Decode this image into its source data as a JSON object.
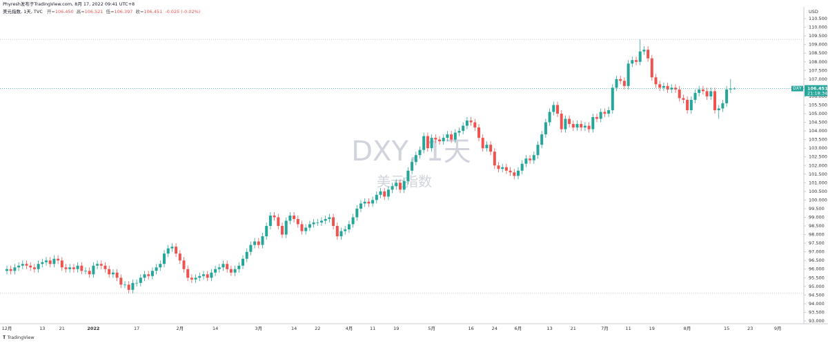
{
  "header": {
    "publisher": "Phyresh发布于TradingView.com, 8月 17, 2022 09:41 UTC+8",
    "symbol": "美元指数, 1天, TVC",
    "ohlc": [
      {
        "label": "开=",
        "value": "106.450"
      },
      {
        "label": "高=",
        "value": "106.521"
      },
      {
        "label": "低=",
        "value": "106.397"
      },
      {
        "label": "收=",
        "value": "106.451"
      }
    ],
    "change": "-0.025 (-0.02%)"
  },
  "watermark": {
    "ticker": "DXY, 1天",
    "name": "美元指数"
  },
  "price_tag": {
    "symbol": "DXY",
    "countdown": "21:18:34"
  },
  "footer": "TradingView",
  "chart_data": {
    "type": "candlestick",
    "currency": "USD",
    "up_color": "#26a69a",
    "down_color": "#ef5350",
    "ylim": [
      92.84,
      111.18
    ],
    "yticks": [
      {
        "value": 93,
        "label": "93.000"
      },
      {
        "value": 93.5,
        "label": "93.500"
      },
      {
        "value": 94,
        "label": "94.000"
      },
      {
        "value": 94.5,
        "label": "94.500"
      },
      {
        "value": 95,
        "label": "95.000"
      },
      {
        "value": 95.5,
        "label": "95.500"
      },
      {
        "value": 96,
        "label": "96.000"
      },
      {
        "value": 96.5,
        "label": "96.500"
      },
      {
        "value": 97,
        "label": "97.000"
      },
      {
        "value": 97.5,
        "label": "97.500"
      },
      {
        "value": 98,
        "label": "98.000"
      },
      {
        "value": 98.5,
        "label": "98.500"
      },
      {
        "value": 99,
        "label": "99.000"
      },
      {
        "value": 99.5,
        "label": "99.500"
      },
      {
        "value": 100,
        "label": "100.000"
      },
      {
        "value": 100.5,
        "label": "100.500"
      },
      {
        "value": 101,
        "label": "101.000"
      },
      {
        "value": 101.5,
        "label": "101.500"
      },
      {
        "value": 102,
        "label": "102.000"
      },
      {
        "value": 102.5,
        "label": "102.500"
      },
      {
        "value": 103,
        "label": "103.000"
      },
      {
        "value": 103.5,
        "label": "103.500"
      },
      {
        "value": 104,
        "label": "104.000"
      },
      {
        "value": 104.5,
        "label": "104.500"
      },
      {
        "value": 105,
        "label": "105.000"
      },
      {
        "value": 105.5,
        "label": "105.500"
      },
      {
        "value": 106,
        "label": "106.000"
      },
      {
        "value": 106.5,
        "label": "106.500"
      },
      {
        "value": 107,
        "label": "107.000"
      },
      {
        "value": 107.5,
        "label": "107.500"
      },
      {
        "value": 108,
        "label": "108.000"
      },
      {
        "value": 108.5,
        "label": "108.500"
      },
      {
        "value": 109,
        "label": "109.000"
      },
      {
        "value": 109.5,
        "label": "109.500"
      },
      {
        "value": 110,
        "label": "110.000"
      },
      {
        "value": 110.5,
        "label": "110.500"
      }
    ],
    "grid": false,
    "extreme_lines": [
      109.3,
      94.6
    ],
    "categories": [
      "12月",
      null,
      null,
      null,
      null,
      null,
      null,
      null,
      null,
      "13",
      null,
      null,
      null,
      null,
      "21",
      null,
      null,
      null,
      null,
      null,
      null,
      null,
      "2022",
      null,
      null,
      null,
      null,
      null,
      null,
      null,
      null,
      null,
      null,
      "17",
      null,
      null,
      null,
      null,
      null,
      null,
      null,
      null,
      null,
      null,
      "2月",
      null,
      null,
      null,
      null,
      null,
      null,
      null,
      null,
      "14",
      null,
      null,
      null,
      null,
      null,
      null,
      null,
      null,
      null,
      null,
      "3月",
      null,
      null,
      null,
      null,
      null,
      null,
      null,
      null,
      "14",
      null,
      null,
      null,
      null,
      null,
      "22",
      null,
      null,
      null,
      null,
      null,
      null,
      null,
      "4月",
      null,
      null,
      null,
      null,
      null,
      "11",
      null,
      null,
      null,
      null,
      null,
      "19",
      null,
      null,
      null,
      null,
      null,
      null,
      null,
      null,
      "5月",
      null,
      null,
      null,
      null,
      null,
      null,
      null,
      null,
      null,
      "16",
      null,
      null,
      null,
      null,
      null,
      "24",
      null,
      null,
      null,
      null,
      null,
      "6月",
      null,
      null,
      null,
      null,
      null,
      null,
      null,
      "13",
      null,
      null,
      null,
      null,
      null,
      "21",
      null,
      null,
      null,
      null,
      null,
      null,
      null,
      "7月",
      null,
      null,
      null,
      null,
      null,
      "11",
      null,
      null,
      null,
      null,
      null,
      "19",
      null,
      null,
      null,
      null,
      null,
      null,
      null,
      null,
      "8月",
      null,
      null,
      null,
      null,
      null,
      null,
      null,
      null,
      null,
      "15",
      null,
      null,
      null,
      null,
      null,
      "23",
      null,
      null,
      null,
      null,
      null,
      null,
      "9月",
      null,
      null,
      null
    ],
    "open": [
      95.9,
      96.0,
      95.9,
      96.1,
      96.2,
      96.3,
      96.2,
      96.1,
      96.0,
      96.3,
      96.4,
      96.5,
      96.3,
      96.6,
      96.5,
      96.1,
      96.0,
      96.1,
      96.0,
      96.2,
      95.9,
      95.9,
      95.7,
      96.2,
      96.3,
      96.2,
      96.0,
      95.7,
      95.8,
      95.5,
      95.1,
      95.1,
      94.8,
      95.2,
      95.2,
      95.5,
      95.7,
      95.6,
      95.9,
      96.1,
      96.3,
      96.9,
      97.2,
      97.3,
      96.9,
      96.5,
      96.0,
      95.5,
      95.4,
      95.5,
      95.6,
      95.7,
      95.5,
      95.8,
      96.0,
      96.1,
      96.3,
      96.0,
      95.8,
      96.0,
      96.2,
      96.6,
      97.0,
      97.4,
      97.6,
      97.4,
      97.9,
      98.5,
      99.1,
      99.0,
      98.5,
      98.0,
      98.8,
      99.1,
      98.9,
      98.6,
      98.2,
      98.4,
      98.6,
      98.7,
      98.7,
      98.8,
      98.9,
      99.0,
      98.5,
      97.9,
      98.2,
      98.3,
      98.6,
      99.0,
      99.5,
      99.8,
      99.9,
      99.8,
      100.0,
      100.3,
      100.5,
      100.2,
      100.6,
      100.8,
      101.0,
      100.6,
      101.1,
      101.7,
      102.2,
      102.6,
      102.9,
      103.7,
      103.0,
      103.6,
      103.5,
      103.4,
      103.6,
      103.8,
      103.5,
      103.9,
      104.0,
      104.3,
      104.6,
      104.5,
      104.2,
      103.6,
      103.0,
      103.2,
      102.8,
      102.0,
      101.8,
      101.9,
      101.7,
      101.6,
      101.4,
      101.7,
      102.1,
      102.4,
      102.3,
      102.6,
      103.2,
      103.8,
      104.5,
      105.1,
      105.5,
      105.0,
      104.1,
      104.7,
      104.4,
      104.2,
      104.4,
      104.2,
      104.3,
      104.1,
      104.8,
      104.7,
      105.1,
      105.0,
      105.2,
      106.5,
      107.0,
      106.9,
      106.6,
      107.9,
      108.1,
      108.0,
      108.6,
      108.7,
      108.2,
      107.1,
      106.7,
      106.5,
      106.6,
      106.4,
      106.5,
      106.4,
      105.9,
      105.8,
      105.2,
      105.8,
      106.2,
      106.4,
      106.3,
      106.0,
      106.3,
      105.2,
      105.3,
      105.6,
      106.4,
      106.45,
      null,
      null,
      null,
      null,
      null,
      null,
      null,
      null,
      null,
      null,
      null,
      null,
      null,
      null
    ],
    "high": [
      96.2,
      96.2,
      96.3,
      96.4,
      96.5,
      96.5,
      96.4,
      96.3,
      96.5,
      96.6,
      96.7,
      96.7,
      96.8,
      96.8,
      96.7,
      96.3,
      96.3,
      96.3,
      96.4,
      96.4,
      96.1,
      96.1,
      96.4,
      96.5,
      96.5,
      96.4,
      96.2,
      96.0,
      96.0,
      95.7,
      95.3,
      95.3,
      95.4,
      95.4,
      95.7,
      95.9,
      95.9,
      96.1,
      96.3,
      96.5,
      97.1,
      97.4,
      97.5,
      97.5,
      97.1,
      96.7,
      96.2,
      95.7,
      95.7,
      95.8,
      95.9,
      95.9,
      96.0,
      96.2,
      96.3,
      96.5,
      96.5,
      96.2,
      96.2,
      96.4,
      96.8,
      97.2,
      97.6,
      97.8,
      97.8,
      98.1,
      98.7,
      99.3,
      99.3,
      99.2,
      98.7,
      99.0,
      99.3,
      99.3,
      99.1,
      98.8,
      98.6,
      98.8,
      98.9,
      98.9,
      99.0,
      99.1,
      99.2,
      99.2,
      98.7,
      98.4,
      98.5,
      98.8,
      99.2,
      99.7,
      100.0,
      100.1,
      100.1,
      100.2,
      100.5,
      100.7,
      100.7,
      100.8,
      101.0,
      101.2,
      101.2,
      101.3,
      101.9,
      102.4,
      102.8,
      103.1,
      103.9,
      103.9,
      103.8,
      103.8,
      103.7,
      103.8,
      104.0,
      104.0,
      104.1,
      104.2,
      104.5,
      104.8,
      104.8,
      104.7,
      104.4,
      103.8,
      103.4,
      103.4,
      103.0,
      102.2,
      102.1,
      102.1,
      101.9,
      101.8,
      101.9,
      102.3,
      102.6,
      102.6,
      102.8,
      103.4,
      104.0,
      104.7,
      105.3,
      105.7,
      105.7,
      105.2,
      104.9,
      104.9,
      104.6,
      104.6,
      104.6,
      104.5,
      104.5,
      105.0,
      105.0,
      105.3,
      105.3,
      105.4,
      106.7,
      107.2,
      107.2,
      107.1,
      108.1,
      108.3,
      108.3,
      109.3,
      108.9,
      108.9,
      108.4,
      107.3,
      106.9,
      106.8,
      106.8,
      106.7,
      106.7,
      106.6,
      106.1,
      106.0,
      106.0,
      106.4,
      106.6,
      106.6,
      106.5,
      106.5,
      106.5,
      105.5,
      105.8,
      106.6,
      107.0,
      106.521,
      null,
      null,
      null,
      null,
      null,
      null,
      null,
      null,
      null,
      null,
      null,
      null,
      null,
      null
    ],
    "low": [
      95.7,
      95.7,
      95.7,
      95.9,
      96.0,
      96.0,
      95.9,
      95.8,
      95.8,
      96.1,
      96.2,
      96.1,
      96.1,
      96.3,
      95.9,
      95.8,
      95.8,
      95.8,
      95.8,
      95.7,
      95.7,
      95.5,
      95.5,
      96.0,
      96.0,
      95.8,
      95.5,
      95.5,
      95.3,
      94.9,
      94.9,
      94.6,
      94.6,
      95.0,
      95.0,
      95.3,
      95.4,
      95.4,
      95.7,
      95.9,
      96.1,
      96.7,
      97.0,
      96.7,
      96.3,
      95.8,
      95.3,
      95.2,
      95.2,
      95.3,
      95.4,
      95.3,
      95.3,
      95.6,
      95.8,
      95.9,
      95.8,
      95.6,
      95.6,
      95.8,
      96.0,
      96.4,
      96.8,
      97.2,
      97.2,
      97.2,
      97.7,
      98.3,
      98.8,
      98.3,
      97.8,
      97.8,
      98.6,
      98.7,
      98.4,
      98.0,
      98.0,
      98.2,
      98.4,
      98.5,
      98.5,
      98.6,
      98.7,
      98.3,
      97.7,
      97.7,
      98.0,
      98.1,
      98.4,
      98.8,
      99.3,
      99.6,
      99.6,
      99.6,
      99.8,
      100.1,
      100.0,
      100.0,
      100.4,
      100.6,
      100.4,
      100.4,
      100.9,
      101.5,
      102.0,
      102.4,
      102.7,
      102.8,
      102.8,
      103.3,
      103.2,
      103.2,
      103.4,
      103.3,
      103.3,
      103.7,
      103.8,
      104.1,
      104.3,
      104.0,
      103.4,
      102.8,
      102.8,
      102.6,
      101.8,
      101.6,
      101.6,
      101.5,
      101.4,
      101.2,
      101.2,
      101.5,
      101.9,
      102.1,
      102.1,
      102.4,
      103.0,
      103.6,
      104.3,
      104.9,
      104.8,
      103.9,
      103.9,
      104.2,
      104.0,
      104.0,
      104.0,
      104.0,
      103.9,
      103.9,
      104.5,
      104.5,
      104.8,
      104.8,
      105.0,
      106.3,
      106.7,
      106.4,
      106.4,
      107.7,
      107.8,
      107.8,
      108.4,
      108.0,
      106.9,
      106.5,
      106.3,
      106.3,
      106.2,
      106.2,
      106.2,
      105.7,
      105.6,
      105.0,
      105.0,
      105.6,
      106.0,
      106.1,
      105.8,
      105.8,
      105.0,
      104.7,
      105.1,
      105.4,
      106.2,
      106.397,
      null,
      null,
      null,
      null,
      null,
      null,
      null,
      null,
      null,
      null,
      null,
      null,
      null,
      null
    ],
    "close": [
      96.0,
      95.9,
      96.1,
      96.2,
      96.3,
      96.2,
      96.1,
      96.0,
      96.3,
      96.4,
      96.5,
      96.3,
      96.6,
      96.5,
      96.1,
      96.0,
      96.1,
      96.0,
      96.2,
      95.9,
      95.9,
      95.7,
      96.2,
      96.3,
      96.2,
      96.0,
      95.7,
      95.8,
      95.5,
      95.1,
      95.1,
      94.8,
      95.2,
      95.2,
      95.5,
      95.7,
      95.6,
      95.9,
      96.1,
      96.3,
      96.9,
      97.2,
      97.3,
      96.9,
      96.5,
      96.0,
      95.5,
      95.4,
      95.5,
      95.6,
      95.7,
      95.5,
      95.8,
      96.0,
      96.1,
      96.3,
      96.0,
      95.8,
      96.0,
      96.2,
      96.6,
      97.0,
      97.4,
      97.6,
      97.4,
      97.9,
      98.5,
      99.1,
      99.0,
      98.5,
      98.0,
      98.8,
      99.1,
      98.9,
      98.6,
      98.2,
      98.4,
      98.6,
      98.7,
      98.7,
      98.8,
      98.9,
      99.0,
      98.5,
      97.9,
      98.2,
      98.3,
      98.6,
      99.0,
      99.5,
      99.8,
      99.9,
      99.8,
      100.0,
      100.3,
      100.5,
      100.2,
      100.6,
      100.8,
      101.0,
      100.6,
      101.1,
      101.7,
      102.2,
      102.6,
      102.9,
      103.7,
      103.0,
      103.6,
      103.5,
      103.4,
      103.6,
      103.8,
      103.5,
      103.9,
      104.0,
      104.3,
      104.6,
      104.5,
      104.2,
      103.6,
      103.0,
      103.2,
      102.8,
      102.0,
      101.8,
      101.9,
      101.7,
      101.6,
      101.4,
      101.7,
      102.1,
      102.4,
      102.3,
      102.6,
      103.2,
      103.8,
      104.5,
      105.1,
      105.5,
      105.0,
      104.1,
      104.7,
      104.4,
      104.2,
      104.4,
      104.2,
      104.3,
      104.1,
      104.8,
      104.7,
      105.1,
      105.0,
      105.2,
      106.5,
      107.0,
      106.9,
      106.6,
      107.9,
      108.1,
      108.0,
      108.6,
      108.7,
      108.2,
      107.1,
      106.7,
      106.5,
      106.6,
      106.4,
      106.5,
      106.4,
      105.9,
      105.8,
      105.2,
      105.8,
      106.2,
      106.4,
      106.3,
      106.0,
      106.3,
      105.2,
      105.3,
      105.6,
      106.4,
      106.45,
      106.451,
      null,
      null,
      null,
      null,
      null,
      null,
      null,
      null,
      null,
      null,
      null,
      null,
      null,
      null
    ]
  }
}
